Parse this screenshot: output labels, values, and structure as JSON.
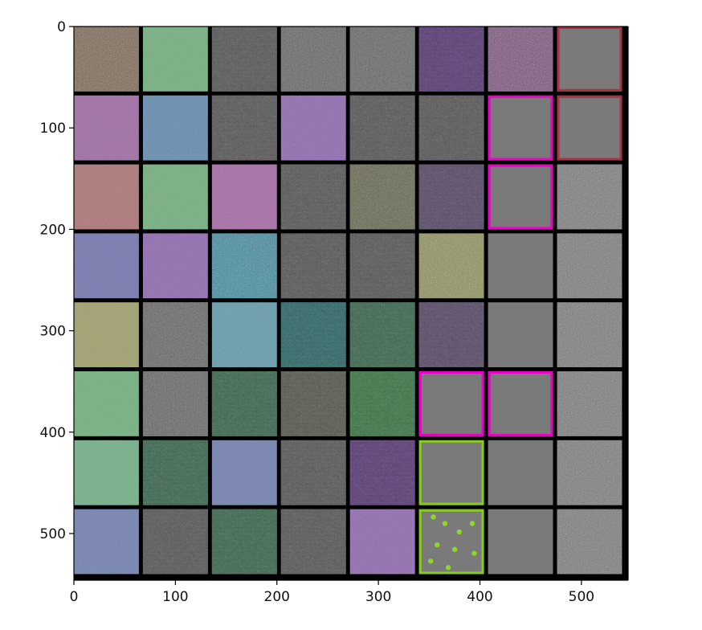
{
  "chart_data": {
    "type": "heatmap",
    "title": "",
    "xlabel": "",
    "ylabel": "",
    "xlim": [
      0,
      546
    ],
    "ylim": [
      546,
      0
    ],
    "x_ticks": [
      0,
      100,
      200,
      300,
      400,
      500
    ],
    "y_ticks": [
      0,
      100,
      200,
      300,
      400,
      500
    ],
    "x_tick_labels": [
      "0",
      "100",
      "200",
      "300",
      "400",
      "500"
    ],
    "y_tick_labels": [
      "0",
      "100",
      "200",
      "300",
      "400",
      "500"
    ],
    "grid": false,
    "grid_rows": 8,
    "grid_cols": 8,
    "tile_size_px": 64,
    "tile_spacing_px": 4,
    "tiles": [
      [
        {
          "color": "#8a7a6a",
          "texture": "noise"
        },
        {
          "color": "#6aaa76",
          "texture": "smooth"
        },
        {
          "color": "#8a8a8a",
          "texture": "streak"
        },
        {
          "color": "#8a8a8a",
          "texture": "speckle"
        },
        {
          "color": "#8a8a8a",
          "texture": "speckle"
        },
        {
          "color": "#8a6aaa",
          "texture": "streak"
        },
        {
          "color": "#8a6a8a",
          "texture": "noise"
        },
        {
          "color": "#7a7a7a",
          "texture": "flat",
          "border": "#aa3344"
        }
      ],
      [
        {
          "color": "#9a62a0",
          "texture": "smooth"
        },
        {
          "color": "#5a86aa",
          "texture": "smooth"
        },
        {
          "color": "#8a8a8a",
          "texture": "streak"
        },
        {
          "color": "#8a62aa",
          "texture": "smooth"
        },
        {
          "color": "#8a8a8a",
          "texture": "streak"
        },
        {
          "color": "#8a8a8a",
          "texture": "streak"
        },
        {
          "color": "#7a7a7a",
          "texture": "flat",
          "border": "#ee00cc"
        },
        {
          "color": "#7a7a7a",
          "texture": "flat",
          "border": "#aa3344"
        }
      ],
      [
        {
          "color": "#a86e6e",
          "texture": "smooth"
        },
        {
          "color": "#6aaa76",
          "texture": "smooth"
        },
        {
          "color": "#a062a0",
          "texture": "smooth"
        },
        {
          "color": "#8a8a8a",
          "texture": "streak"
        },
        {
          "color": "#8a8a76",
          "texture": "speckle"
        },
        {
          "color": "#8a7a9a",
          "texture": "streak"
        },
        {
          "color": "#7a7a7a",
          "texture": "flat",
          "border": "#ee00cc"
        },
        {
          "color": "#8a8a8a",
          "texture": "noise"
        }
      ],
      [
        {
          "color": "#6e6eaa",
          "texture": "smooth"
        },
        {
          "color": "#8a62aa",
          "texture": "smooth"
        },
        {
          "color": "#5a96a6",
          "texture": "noise"
        },
        {
          "color": "#8a8a8a",
          "texture": "streak"
        },
        {
          "color": "#8a8a8a",
          "texture": "streak"
        },
        {
          "color": "#9a9a70",
          "texture": "noise"
        },
        {
          "color": "#7a7a7a",
          "texture": "flat"
        },
        {
          "color": "#8a8a8a",
          "texture": "noise"
        }
      ],
      [
        {
          "color": "#9a9a62",
          "texture": "smooth"
        },
        {
          "color": "#8a8a8a",
          "texture": "speckle"
        },
        {
          "color": "#5a96a6",
          "texture": "smooth"
        },
        {
          "color": "#5a9a9a",
          "texture": "streak"
        },
        {
          "color": "#6a9a80",
          "texture": "streak"
        },
        {
          "color": "#8a7a9a",
          "texture": "streak"
        },
        {
          "color": "#7a7a7a",
          "texture": "flat"
        },
        {
          "color": "#8a8a8a",
          "texture": "noise"
        }
      ],
      [
        {
          "color": "#6aaa76",
          "texture": "smooth"
        },
        {
          "color": "#8a8a8a",
          "texture": "speckle"
        },
        {
          "color": "#6a9a80",
          "texture": "streak"
        },
        {
          "color": "#8a8a80",
          "texture": "streak"
        },
        {
          "color": "#6aaa76",
          "texture": "streak"
        },
        {
          "color": "#7a7a7a",
          "texture": "flat",
          "border": "#ee00cc"
        },
        {
          "color": "#7a7a7a",
          "texture": "flat",
          "border": "#ee00cc"
        },
        {
          "color": "#8a8a8a",
          "texture": "noise"
        }
      ],
      [
        {
          "color": "#6aaa80",
          "texture": "smooth"
        },
        {
          "color": "#6a9a80",
          "texture": "streak"
        },
        {
          "color": "#6a7aaa",
          "texture": "smooth"
        },
        {
          "color": "#8a8a8a",
          "texture": "streak"
        },
        {
          "color": "#8a6aaa",
          "texture": "streak"
        },
        {
          "color": "#7a7a7a",
          "texture": "flat",
          "border": "#88cc22"
        },
        {
          "color": "#7a7a7a",
          "texture": "flat"
        },
        {
          "color": "#8a8a8a",
          "texture": "noise"
        }
      ],
      [
        {
          "color": "#6a7aaa",
          "texture": "smooth"
        },
        {
          "color": "#8a8a8a",
          "texture": "streak"
        },
        {
          "color": "#6a9a80",
          "texture": "streak"
        },
        {
          "color": "#8a8a8a",
          "texture": "streak"
        },
        {
          "color": "#8a62aa",
          "texture": "smooth"
        },
        {
          "color": "#7a7a7a",
          "texture": "spots",
          "border": "#88cc22"
        },
        {
          "color": "#7a7a7a",
          "texture": "flat"
        },
        {
          "color": "#8a8a8a",
          "texture": "noise"
        }
      ]
    ]
  }
}
